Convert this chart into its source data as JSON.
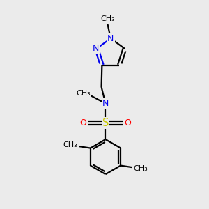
{
  "background_color": "#ebebeb",
  "bond_color": "#000000",
  "nitrogen_color": "#0000ee",
  "oxygen_color": "#ff0000",
  "sulfur_color": "#cccc00",
  "line_width": 1.6,
  "fig_width": 3.0,
  "fig_height": 3.0,
  "dpi": 100,
  "xlim": [
    0,
    10
  ],
  "ylim": [
    0,
    10
  ]
}
